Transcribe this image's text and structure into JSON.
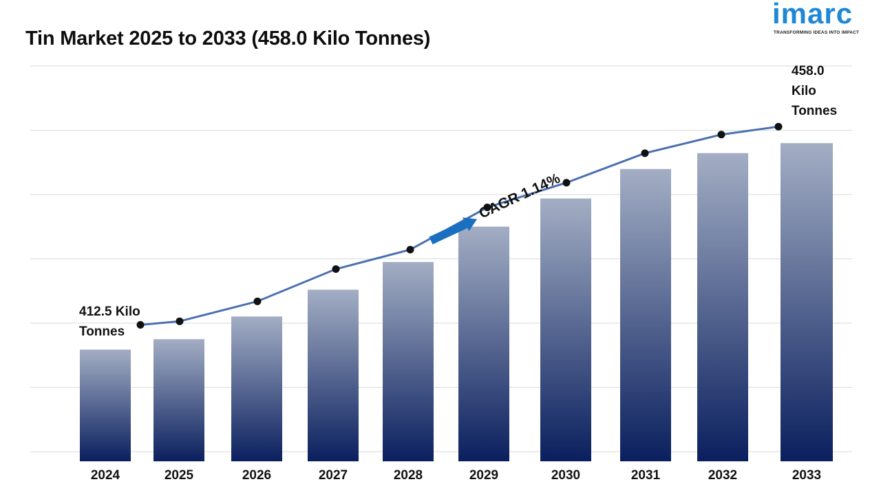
{
  "title": "Tin Market 2025 to 2033 (458.0 Kilo Tonnes)",
  "logo": {
    "word": "imarc",
    "tagline": "TRANSFORMING IDEAS INTO IMPACT"
  },
  "colors": {
    "bar_top": "#a3aec4",
    "bar_bottom": "#0a1f5e",
    "line": "#4a6fb0",
    "marker": "#111111",
    "arrow": "#1a6fc0",
    "grid": "#d9d9d9",
    "logo": "#1f88d6"
  },
  "chart_data": {
    "type": "bar",
    "title": "Tin Market 2025 to 2033 (458.0 Kilo Tonnes)",
    "categories": [
      "2024",
      "2025",
      "2026",
      "2027",
      "2028",
      "2029",
      "2030",
      "2031",
      "2032",
      "2033"
    ],
    "series": [
      {
        "name": "Tin Market (Kilo Tonnes)",
        "values": [
          412.5,
          414.8,
          419.8,
          425.7,
          431.8,
          439.6,
          445.8,
          452.3,
          455.8,
          458.0
        ]
      }
    ],
    "ylim": [
      390,
      475
    ],
    "xlabel": "",
    "ylabel": "",
    "grid": true,
    "annotations": {
      "start_line1": "412.5 Kilo",
      "start_line2": "Tonnes",
      "end_line1": "458.0",
      "end_line2": "Kilo",
      "end_line3": "Tonnes",
      "cagr": "CAGR 1.14%"
    }
  }
}
